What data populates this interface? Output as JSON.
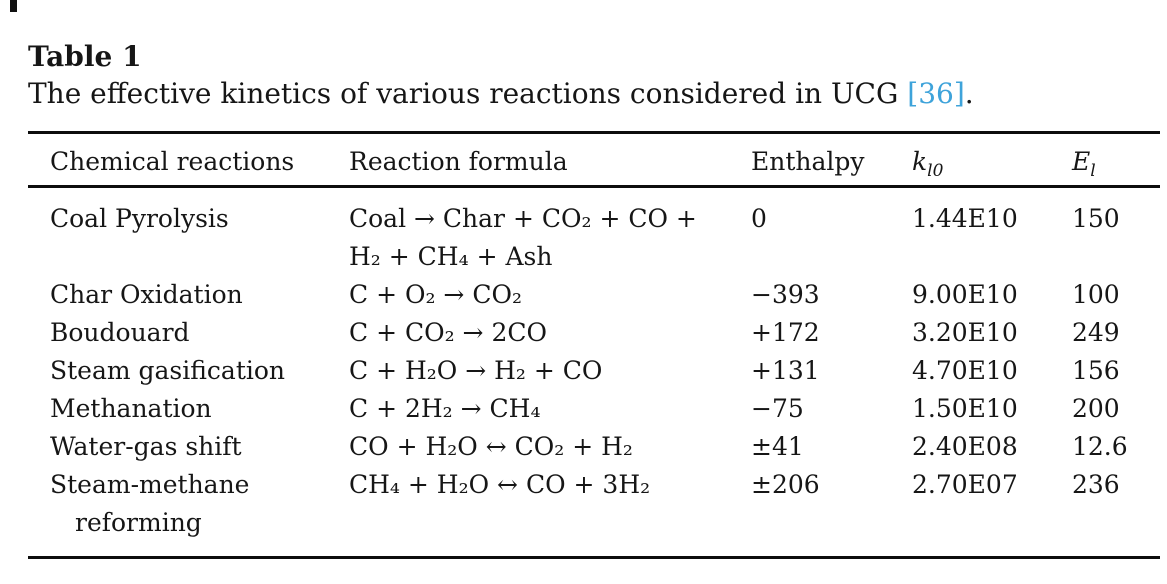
{
  "page": {
    "title": "Table 1",
    "caption": {
      "text": "The effective kinetics of various reactions considered in UCG ",
      "citation": "[36]",
      "suffix": "."
    },
    "citation_color": "#3ea3da",
    "text_color": "#161616"
  },
  "table": {
    "headers": {
      "reactions": "Chemical reactions",
      "formula": "Reaction formula",
      "enthalpy": "Enthalpy",
      "k_base": "k",
      "k_sub": "l0",
      "e_base": "E",
      "e_sub": "l"
    },
    "rows": [
      {
        "reaction": "Coal Pyrolysis",
        "reaction_line2": "",
        "formula": "Coal → Char + CO₂ + CO +",
        "formula_line2": "H₂ + CH₄ + Ash",
        "enthalpy": "0",
        "k0": "1.44E10",
        "ea": "150"
      },
      {
        "reaction": "Char Oxidation",
        "reaction_line2": "",
        "formula": "C + O₂ → CO₂",
        "formula_line2": "",
        "enthalpy": "−393",
        "k0": "9.00E10",
        "ea": "100"
      },
      {
        "reaction": "Boudouard",
        "reaction_line2": "",
        "formula": "C + CO₂ → 2CO",
        "formula_line2": "",
        "enthalpy": "+172",
        "k0": "3.20E10",
        "ea": "249"
      },
      {
        "reaction": "Steam gasification",
        "reaction_line2": "",
        "formula": "C + H₂O → H₂ + CO",
        "formula_line2": "",
        "enthalpy": "+131",
        "k0": "4.70E10",
        "ea": "156"
      },
      {
        "reaction": "Methanation",
        "reaction_line2": "",
        "formula": "C + 2H₂ → CH₄",
        "formula_line2": "",
        "enthalpy": "−75",
        "k0": "1.50E10",
        "ea": "200"
      },
      {
        "reaction": "Water-gas shift",
        "reaction_line2": "",
        "formula": "CO + H₂O ↔ CO₂ + H₂",
        "formula_line2": "",
        "enthalpy": "±41",
        "k0": "2.40E08",
        "ea": "12.6"
      },
      {
        "reaction": "Steam-methane",
        "reaction_line2": "reforming",
        "formula": "CH₄ + H₂O ↔ CO + 3H₂",
        "formula_line2": "",
        "enthalpy": "±206",
        "k0": "2.70E07",
        "ea": "236"
      }
    ]
  }
}
